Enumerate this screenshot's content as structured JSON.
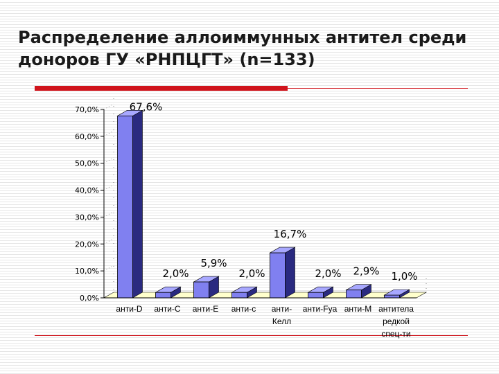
{
  "slide": {
    "title_line1": "Распределение аллоиммунных антител среди",
    "title_line2": "доноров ГУ «РНПЦГТ» (n=133)"
  },
  "colors": {
    "accent": "#d0141c",
    "bar_front": "#8080f0",
    "bar_side": "#2a2a80",
    "bar_top": "#a8a8ff",
    "floor": "#ffffcc"
  },
  "chart_data": {
    "type": "bar",
    "title": "",
    "xlabel": "",
    "ylabel": "",
    "ylim": [
      0,
      70
    ],
    "yticks": [
      "0,0%",
      "10,0%",
      "20,0%",
      "30,0%",
      "40,0%",
      "50,0%",
      "60,0%",
      "70,0%"
    ],
    "grid": false,
    "style": "3d",
    "categories": [
      [
        "анти-D"
      ],
      [
        "анти-C"
      ],
      [
        "анти-E"
      ],
      [
        "анти-c"
      ],
      [
        "анти-",
        "Келл"
      ],
      [
        "анти-Fya"
      ],
      [
        "анти-M"
      ],
      [
        "антитела",
        "редкой",
        "спец-ти"
      ]
    ],
    "values": [
      67.6,
      2.0,
      5.9,
      2.0,
      16.7,
      2.0,
      2.9,
      1.0
    ],
    "data_labels": [
      "67,6%",
      "2,0%",
      "5,9%",
      "2,0%",
      "16,7%",
      "2,0%",
      "2,9%",
      "1,0%"
    ]
  }
}
